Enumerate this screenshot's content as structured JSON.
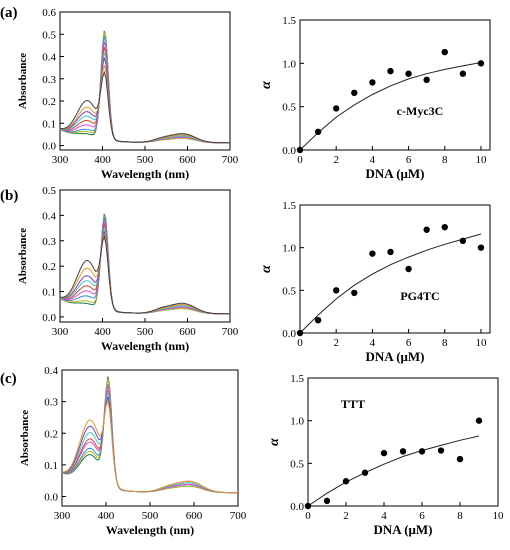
{
  "panels": [
    {
      "label": "(a)",
      "spectra": {
        "xlabel": "Wavelength (nm)",
        "ylabel": "Absorbance",
        "xlim": [
          300,
          700
        ],
        "ylim": [
          -0.02,
          0.6
        ],
        "xticks": [
          300,
          400,
          500,
          600,
          700
        ],
        "yticks": [
          0.0,
          0.1,
          0.2,
          0.3,
          0.4,
          0.5,
          0.6
        ],
        "soret_peaks": [
          0.53,
          0.52,
          0.5,
          0.47,
          0.44,
          0.41,
          0.38,
          0.34,
          0.3
        ],
        "shoulder_365": [
          0.02,
          0.03,
          0.04,
          0.06,
          0.08,
          0.1,
          0.12,
          0.14,
          0.17
        ],
        "q_band_590": [
          0.02,
          0.02,
          0.025,
          0.025,
          0.03,
          0.03,
          0.035,
          0.035,
          0.04
        ]
      },
      "binding": {
        "xlabel": "DNA (μM)",
        "ylabel": "α",
        "annotation": "c-Myc3C",
        "xlim": [
          0,
          10.5
        ],
        "ylim": [
          0,
          1.5
        ],
        "xticks": [
          0,
          2,
          4,
          6,
          8,
          10
        ],
        "yticks": [
          0.0,
          0.5,
          1.0,
          1.5
        ],
        "points": [
          [
            1,
            0.21
          ],
          [
            2,
            0.48
          ],
          [
            3,
            0.66
          ],
          [
            4,
            0.78
          ],
          [
            5,
            0.91
          ],
          [
            6,
            0.88
          ],
          [
            7,
            0.81
          ],
          [
            8,
            1.13
          ],
          [
            9,
            0.88
          ],
          [
            10,
            1.0
          ]
        ],
        "fit_curve": [
          [
            0,
            0
          ],
          [
            1,
            0.2
          ],
          [
            2,
            0.38
          ],
          [
            3,
            0.52
          ],
          [
            4,
            0.64
          ],
          [
            5,
            0.74
          ],
          [
            6,
            0.82
          ],
          [
            7,
            0.88
          ],
          [
            8,
            0.93
          ],
          [
            9,
            0.97
          ],
          [
            10,
            1.01
          ]
        ]
      }
    },
    {
      "label": "(b)",
      "spectra": {
        "xlabel": "Wavelength (nm)",
        "ylabel": "Absorbance",
        "xlim": [
          300,
          700
        ],
        "ylim": [
          -0.02,
          0.5
        ],
        "xticks": [
          300,
          400,
          500,
          600,
          700
        ],
        "yticks": [
          0.0,
          0.1,
          0.2,
          0.3,
          0.4,
          0.5
        ],
        "soret_peaks": [
          0.42,
          0.41,
          0.4,
          0.38,
          0.36,
          0.34,
          0.32,
          0.3,
          0.28
        ],
        "shoulder_365": [
          0.02,
          0.03,
          0.05,
          0.07,
          0.09,
          0.11,
          0.13,
          0.16,
          0.19
        ],
        "q_band_590": [
          0.02,
          0.02,
          0.025,
          0.025,
          0.03,
          0.03,
          0.035,
          0.035,
          0.04
        ]
      },
      "binding": {
        "xlabel": "DNA (μM)",
        "ylabel": "α",
        "annotation": "PG4TC",
        "xlim": [
          0,
          10.5
        ],
        "ylim": [
          0,
          1.5
        ],
        "xticks": [
          0,
          2,
          4,
          6,
          8,
          10
        ],
        "yticks": [
          0.0,
          0.5,
          1.0,
          1.5
        ],
        "points": [
          [
            1,
            0.15
          ],
          [
            2,
            0.5
          ],
          [
            3,
            0.47
          ],
          [
            4,
            0.93
          ],
          [
            5,
            0.95
          ],
          [
            6,
            0.75
          ],
          [
            7,
            1.21
          ],
          [
            8,
            1.24
          ],
          [
            9,
            1.08
          ],
          [
            10,
            1.0
          ]
        ],
        "fit_curve": [
          [
            0,
            0
          ],
          [
            1,
            0.21
          ],
          [
            2,
            0.4
          ],
          [
            3,
            0.56
          ],
          [
            4,
            0.69
          ],
          [
            5,
            0.8
          ],
          [
            6,
            0.89
          ],
          [
            7,
            0.97
          ],
          [
            8,
            1.04
          ],
          [
            9,
            1.1
          ],
          [
            10,
            1.16
          ]
        ]
      }
    },
    {
      "label": "(c)",
      "spectra": {
        "xlabel": "Wavelength (nm)",
        "ylabel": "Absorbance",
        "xlim": [
          300,
          700
        ],
        "ylim": [
          -0.03,
          0.4
        ],
        "xticks": [
          300,
          400,
          500,
          600,
          700
        ],
        "yticks": [
          0.0,
          0.1,
          0.2,
          0.3,
          0.4
        ],
        "soret_peaks": [
          0.37,
          0.36,
          0.34,
          0.33,
          0.31,
          0.3,
          0.28,
          0.26
        ],
        "shoulder_365": [
          0.1,
          0.11,
          0.12,
          0.14,
          0.15,
          0.17,
          0.19,
          0.21
        ],
        "q_band_590": [
          0.02,
          0.02,
          0.025,
          0.025,
          0.03,
          0.03,
          0.035,
          0.035
        ]
      },
      "binding": {
        "xlabel": "DNA (μM)",
        "ylabel": "α",
        "annotation": "TTT",
        "xlim": [
          0,
          10
        ],
        "ylim": [
          0,
          1.5
        ],
        "xticks": [
          0,
          2,
          4,
          6,
          8,
          10
        ],
        "yticks": [
          0.0,
          0.5,
          1.0,
          1.5
        ],
        "points": [
          [
            1,
            0.06
          ],
          [
            2,
            0.29
          ],
          [
            3,
            0.39
          ],
          [
            4,
            0.62
          ],
          [
            5,
            0.64
          ],
          [
            6,
            0.64
          ],
          [
            7,
            0.65
          ],
          [
            8,
            0.55
          ],
          [
            9,
            1.0
          ]
        ],
        "fit_curve": [
          [
            0,
            0
          ],
          [
            1,
            0.15
          ],
          [
            2,
            0.28
          ],
          [
            3,
            0.39
          ],
          [
            4,
            0.49
          ],
          [
            5,
            0.58
          ],
          [
            6,
            0.65
          ],
          [
            7,
            0.71
          ],
          [
            8,
            0.77
          ],
          [
            9,
            0.82
          ]
        ]
      }
    }
  ],
  "colors": {
    "spectra_palette": [
      "#1f7a3a",
      "#c2b32a",
      "#2f8fd6",
      "#d94ad0",
      "#e0442f",
      "#3acfcf",
      "#7a3fbf",
      "#e69a2a",
      "#404040"
    ],
    "axis": "#000000",
    "point": "#000000"
  },
  "chart_data": [
    {
      "type": "line",
      "panel": "(a)",
      "xlabel": "Wavelength (nm)",
      "ylabel": "Absorbance",
      "x": [
        300,
        400,
        500,
        600,
        700
      ],
      "series_count": 9,
      "peak_wavelength": 405
    },
    {
      "type": "scatter",
      "panel": "(a)",
      "xlabel": "DNA (μM)",
      "ylabel": "α",
      "annotation": "c-Myc3C",
      "x": [
        1,
        2,
        3,
        4,
        5,
        6,
        7,
        8,
        9,
        10
      ],
      "y": [
        0.21,
        0.48,
        0.66,
        0.78,
        0.91,
        0.88,
        0.81,
        1.13,
        0.88,
        1.0
      ]
    },
    {
      "type": "line",
      "panel": "(b)",
      "xlabel": "Wavelength (nm)",
      "ylabel": "Absorbance",
      "x": [
        300,
        400,
        500,
        600,
        700
      ],
      "series_count": 9,
      "peak_wavelength": 405
    },
    {
      "type": "scatter",
      "panel": "(b)",
      "xlabel": "DNA (μM)",
      "ylabel": "α",
      "annotation": "PG4TC",
      "x": [
        1,
        2,
        3,
        4,
        5,
        6,
        7,
        8,
        9,
        10
      ],
      "y": [
        0.15,
        0.5,
        0.47,
        0.93,
        0.95,
        0.75,
        1.21,
        1.24,
        1.08,
        1.0
      ]
    },
    {
      "type": "line",
      "panel": "(c)",
      "xlabel": "Wavelength (nm)",
      "ylabel": "Absorbance",
      "x": [
        300,
        400,
        500,
        600,
        700
      ],
      "series_count": 8,
      "peak_wavelength": 405
    },
    {
      "type": "scatter",
      "panel": "(c)",
      "xlabel": "DNA (μM)",
      "ylabel": "α",
      "annotation": "TTT",
      "x": [
        1,
        2,
        3,
        4,
        5,
        6,
        7,
        8,
        9
      ],
      "y": [
        0.06,
        0.29,
        0.39,
        0.62,
        0.64,
        0.64,
        0.65,
        0.55,
        1.0
      ]
    }
  ]
}
